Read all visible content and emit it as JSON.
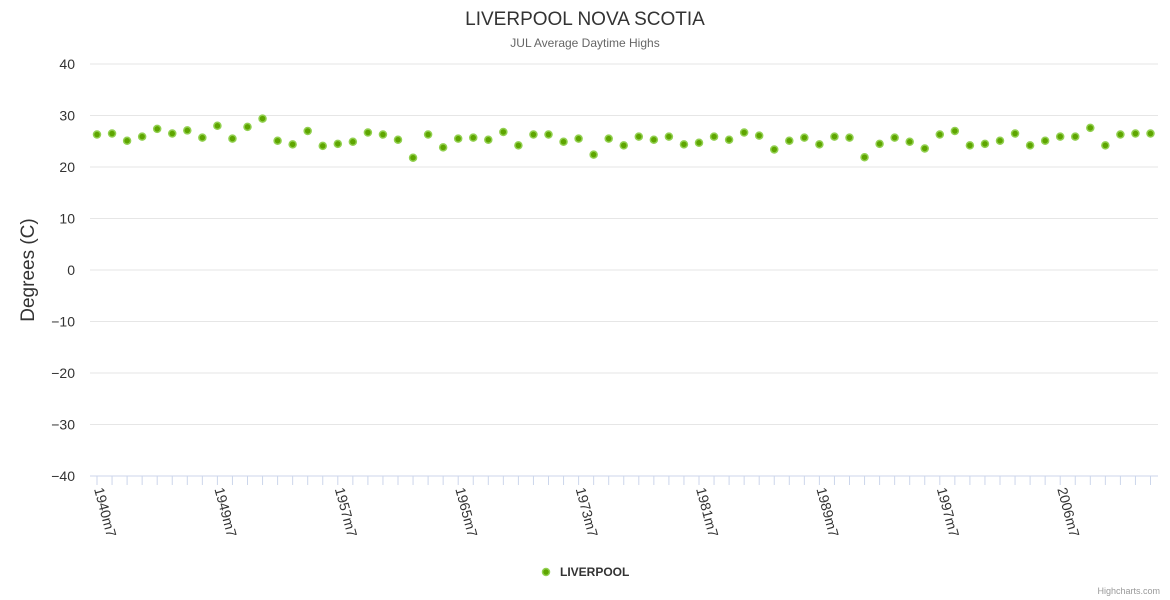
{
  "chart_data": {
    "type": "scatter",
    "title": "LIVERPOOL NOVA SCOTIA",
    "subtitle": "JUL Average Daytime Highs",
    "ylabel": "Degrees (C)",
    "xlabel": "",
    "ylim": [
      -40,
      40
    ],
    "yticks": [
      40,
      30,
      20,
      10,
      0,
      -10,
      -20,
      -30,
      -40
    ],
    "x_tick_labels": [
      {
        "index": 0,
        "label": "1940m7"
      },
      {
        "index": 8,
        "label": "1949m7"
      },
      {
        "index": 16,
        "label": "1957m7"
      },
      {
        "index": 24,
        "label": "1965m7"
      },
      {
        "index": 32,
        "label": "1973m7"
      },
      {
        "index": 40,
        "label": "1981m7"
      },
      {
        "index": 48,
        "label": "1989m7"
      },
      {
        "index": 56,
        "label": "1997m7"
      },
      {
        "index": 64,
        "label": "2006m7"
      }
    ],
    "series": [
      {
        "name": "LIVERPOOL",
        "color": "#5ea500",
        "stroke": "#92d050",
        "values": [
          26.3,
          26.5,
          25.1,
          25.9,
          27.4,
          26.5,
          27.1,
          25.7,
          28.0,
          25.5,
          27.8,
          29.4,
          25.1,
          24.4,
          27.0,
          24.1,
          24.5,
          24.9,
          26.7,
          26.3,
          25.3,
          21.8,
          26.3,
          23.8,
          25.5,
          25.7,
          25.3,
          26.8,
          24.2,
          26.3,
          26.3,
          24.9,
          25.5,
          22.4,
          25.5,
          24.2,
          25.9,
          25.3,
          25.9,
          24.4,
          24.7,
          25.9,
          25.3,
          26.7,
          26.1,
          23.4,
          25.1,
          25.7,
          24.4,
          25.9,
          25.7,
          21.9,
          24.5,
          25.7,
          24.9,
          23.6,
          26.3,
          27.0,
          24.2,
          24.5,
          25.1,
          26.5,
          24.2,
          25.1,
          25.9,
          25.9,
          27.6,
          24.2,
          26.3,
          26.5,
          26.5
        ]
      }
    ],
    "legend": {
      "position": "bottom-center",
      "label": "LIVERPOOL"
    }
  },
  "credits": "Highcharts.com"
}
